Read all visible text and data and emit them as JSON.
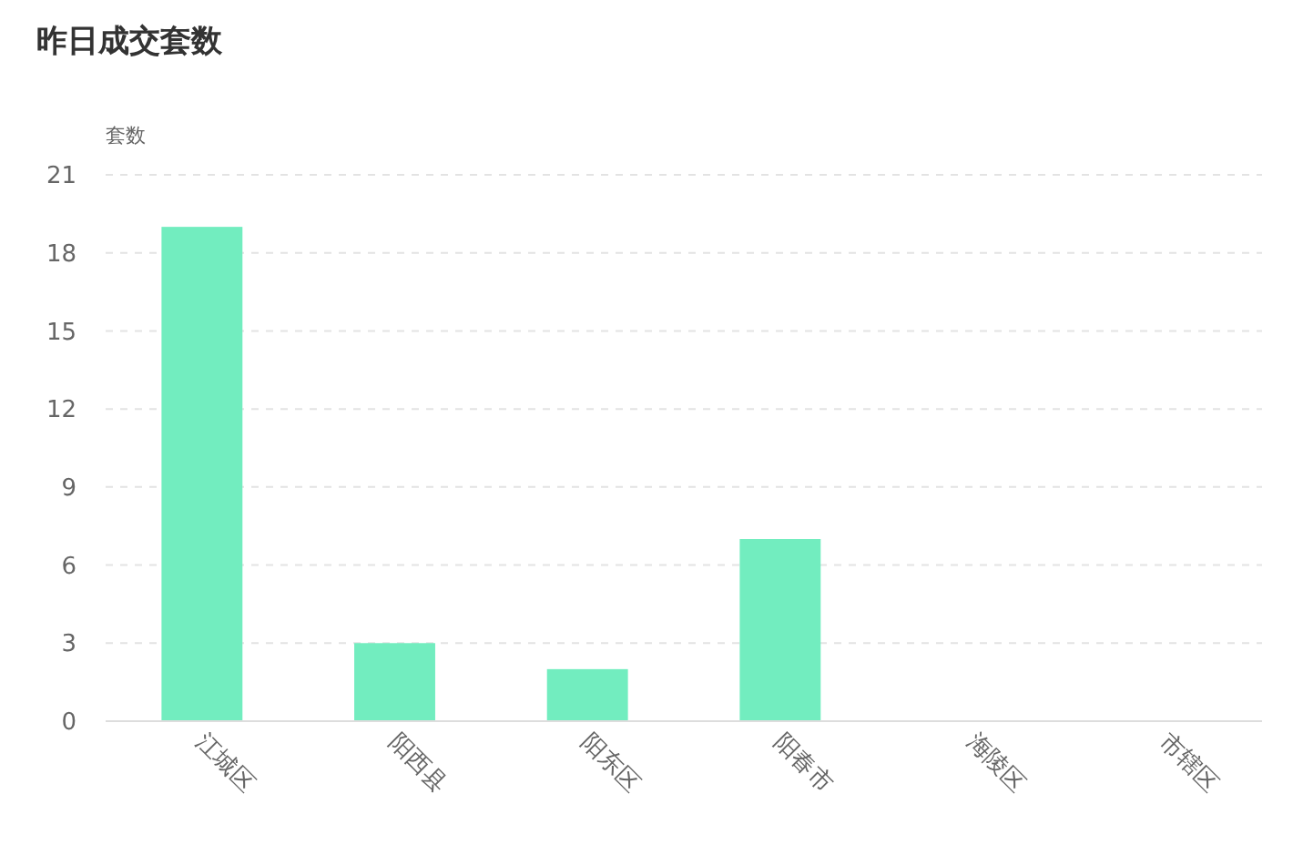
{
  "chart_data": {
    "type": "bar",
    "title": "昨日成交套数",
    "ylabel": "套数",
    "categories": [
      "江城区",
      "阳西县",
      "阳东区",
      "阳春市",
      "海陵区",
      "市辖区"
    ],
    "values": [
      19,
      3,
      2,
      7,
      0,
      0
    ],
    "color": "#72edbf",
    "ylim": [
      0,
      21
    ],
    "yticks": [
      0,
      3,
      6,
      9,
      12,
      15,
      18,
      21
    ],
    "grid": "y"
  }
}
